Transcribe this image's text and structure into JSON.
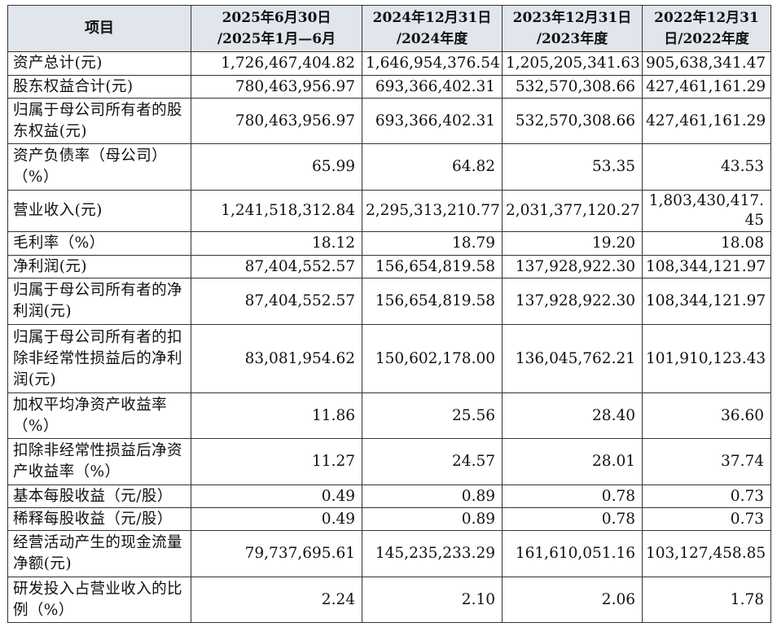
{
  "table": {
    "headers": [
      {
        "lines": [
          "项目"
        ]
      },
      {
        "lines": [
          "2025年6月30日",
          "/2025年1月—6月"
        ]
      },
      {
        "lines": [
          "2024年12月31日",
          "/2024年度"
        ]
      },
      {
        "lines": [
          "2023年12月31日",
          "/2023年度"
        ]
      },
      {
        "lines": [
          "2022年12月31",
          "日/2022年度"
        ]
      }
    ],
    "rows": [
      {
        "label": "资产总计(元)",
        "values": [
          "1,726,467,404.82",
          "1,646,954,376.54",
          "1,205,205,341.63",
          "905,638,341.47"
        ]
      },
      {
        "label": "股东权益合计(元)",
        "values": [
          "780,463,956.97",
          "693,366,402.31",
          "532,570,308.66",
          "427,461,161.29"
        ]
      },
      {
        "label": "归属于母公司所有者的股东权益(元)",
        "values": [
          "780,463,956.97",
          "693,366,402.31",
          "532,570,308.66",
          "427,461,161.29"
        ]
      },
      {
        "label": "资产负债率（母公司）（%）",
        "values": [
          "65.99",
          "64.82",
          "53.35",
          "43.53"
        ]
      },
      {
        "label": "营业收入(元)",
        "values": [
          "1,241,518,312.84",
          "2,295,313,210.77",
          "2,031,377,120.27",
          "1,803,430,417.45"
        ]
      },
      {
        "label": "毛利率（%）",
        "values": [
          "18.12",
          "18.79",
          "19.20",
          "18.08"
        ]
      },
      {
        "label": "净利润(元)",
        "values": [
          "87,404,552.57",
          "156,654,819.58",
          "137,928,922.30",
          "108,344,121.97"
        ]
      },
      {
        "label": "归属于母公司所有者的净利润(元)",
        "values": [
          "87,404,552.57",
          "156,654,819.58",
          "137,928,922.30",
          "108,344,121.97"
        ]
      },
      {
        "label": "归属于母公司所有者的扣除非经常性损益后的净利润(元)",
        "values": [
          "83,081,954.62",
          "150,602,178.00",
          "136,045,762.21",
          "101,910,123.43"
        ]
      },
      {
        "label": "加权平均净资产收益率（%）",
        "values": [
          "11.86",
          "25.56",
          "28.40",
          "36.60"
        ]
      },
      {
        "label": "扣除非经常性损益后净资产收益率（%）",
        "values": [
          "11.27",
          "24.57",
          "28.01",
          "37.74"
        ]
      },
      {
        "label": "基本每股收益（元/股）",
        "values": [
          "0.49",
          "0.89",
          "0.78",
          "0.73"
        ]
      },
      {
        "label": "稀释每股收益（元/股）",
        "values": [
          "0.49",
          "0.89",
          "0.78",
          "0.73"
        ]
      },
      {
        "label": "经营活动产生的现金流量净额(元)",
        "values": [
          "79,737,695.61",
          "145,235,233.29",
          "161,610,051.16",
          "103,127,458.85"
        ]
      },
      {
        "label": "研发投入占营业收入的比例（%）",
        "values": [
          "2.24",
          "2.10",
          "2.06",
          "1.78"
        ]
      }
    ],
    "colors": {
      "header_bg": "#e1e5ec",
      "border": "#333333",
      "text": "#111111"
    }
  }
}
